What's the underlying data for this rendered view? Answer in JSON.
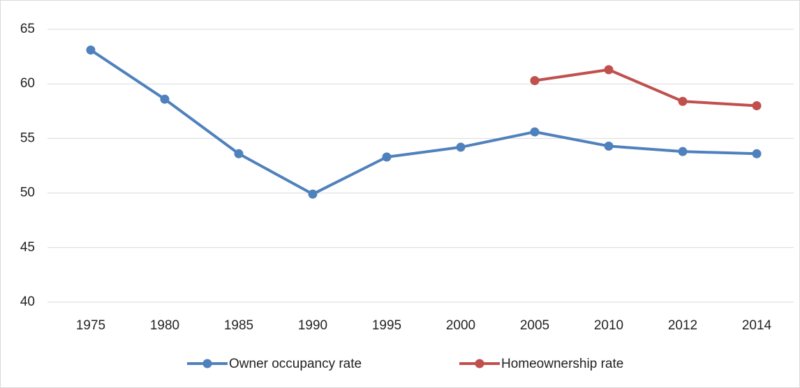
{
  "chart_data": {
    "type": "line",
    "categories": [
      "1975",
      "1980",
      "1985",
      "1990",
      "1995",
      "2000",
      "2005",
      "2010",
      "2012",
      "2014"
    ],
    "series": [
      {
        "name": "Owner occupancy rate",
        "color": "#4f81bd",
        "values": [
          63.1,
          58.6,
          53.6,
          49.9,
          53.3,
          54.2,
          55.6,
          54.3,
          53.8,
          53.6
        ]
      },
      {
        "name": "Homeownership rate",
        "color": "#c0504d",
        "values": [
          null,
          null,
          null,
          null,
          null,
          null,
          60.3,
          61.3,
          58.4,
          58.0
        ]
      }
    ],
    "ylim": [
      40,
      65
    ],
    "yticks": [
      40,
      45,
      50,
      55,
      60,
      65
    ],
    "grid": true,
    "legend": "bottom"
  }
}
